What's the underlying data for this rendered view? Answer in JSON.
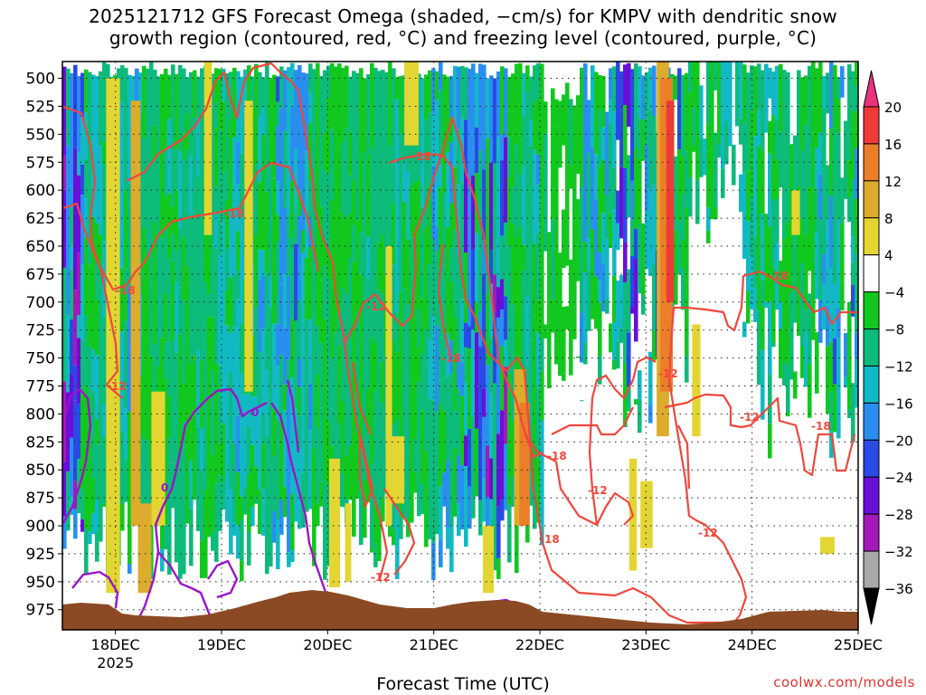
{
  "chart_data": {
    "type": "heatmap",
    "title_lines": [
      "2025121712 GFS Forecast Omega (shaded, −cm/s) for KMPV with dendritic snow",
      "growth region (contoured, red, °C) and freezing level (contoured, purple, °C)"
    ],
    "xlabel": "Forecast Time (UTC)",
    "credit": "coolwx.com/models",
    "x_ticks": [
      "18DEC",
      "19DEC",
      "20DEC",
      "21DEC",
      "22DEC",
      "23DEC",
      "24DEC",
      "25DEC"
    ],
    "x_year_label": "2025",
    "x_range_days": [
      17.5,
      25.0
    ],
    "y_ticks": [
      500,
      525,
      550,
      575,
      600,
      625,
      650,
      675,
      700,
      725,
      750,
      775,
      800,
      825,
      850,
      875,
      900,
      925,
      950,
      975
    ],
    "y_range_hpa": [
      485,
      993
    ],
    "y_reversed": true,
    "grid": true,
    "colorbar": {
      "position": "right",
      "labels": [
        "20",
        "16",
        "12",
        "8",
        "4",
        "−4",
        "−8",
        "−12",
        "−16",
        "−20",
        "−24",
        "−28",
        "−32",
        "−36"
      ],
      "bins": [
        {
          "range": ">20",
          "color": "#e8327a"
        },
        {
          "range": "16 to 20",
          "color": "#ef3b38"
        },
        {
          "range": "12 to 16",
          "color": "#ec7e2a"
        },
        {
          "range": "8 to 12",
          "color": "#dcac2c"
        },
        {
          "range": "4 to 8",
          "color": "#e3d632"
        },
        {
          "range": "-4 to 4",
          "color": "#ffffff"
        },
        {
          "range": "-8 to -4",
          "color": "#12c81e"
        },
        {
          "range": "-12 to -8",
          "color": "#0dbb7a"
        },
        {
          "range": "-16 to -12",
          "color": "#12b9c4"
        },
        {
          "range": "-20 to -16",
          "color": "#2a8ef0"
        },
        {
          "range": "-24 to -20",
          "color": "#2a4ae6"
        },
        {
          "range": "-28 to -24",
          "color": "#6a0fd8"
        },
        {
          "range": "-32 to -28",
          "color": "#a41ab8"
        },
        {
          "range": "-36 to -32",
          "color": "#a9a9a9"
        },
        {
          "range": "<-36",
          "color": "#000000"
        }
      ]
    },
    "contour_labels": {
      "dendritic_red": [
        "-18",
        "-12",
        "-18",
        "-18",
        "-12",
        "-18",
        "-18",
        "-12",
        "-18",
        "-12",
        "-12",
        "-12",
        "-18",
        "-12",
        "-18"
      ],
      "freezing_purple": [
        "0",
        "0"
      ]
    },
    "colors": {
      "dendritic_contour": "#f0463c",
      "freezing_contour": "#9a14c8",
      "terrain": "#8b4a24"
    }
  }
}
